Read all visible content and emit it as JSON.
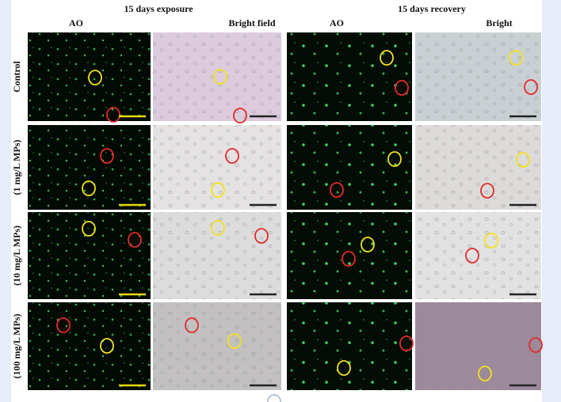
{
  "figure": {
    "groups": [
      "15  days exposure",
      "15  days recovery"
    ],
    "columns": [
      "AO",
      "Bright field",
      "AO",
      "Bright"
    ],
    "rows": [
      "Control",
      "(1 mg/L MPs)",
      "(10 mg/L MPs)",
      "(100 mg/L MPs)"
    ]
  }
}
